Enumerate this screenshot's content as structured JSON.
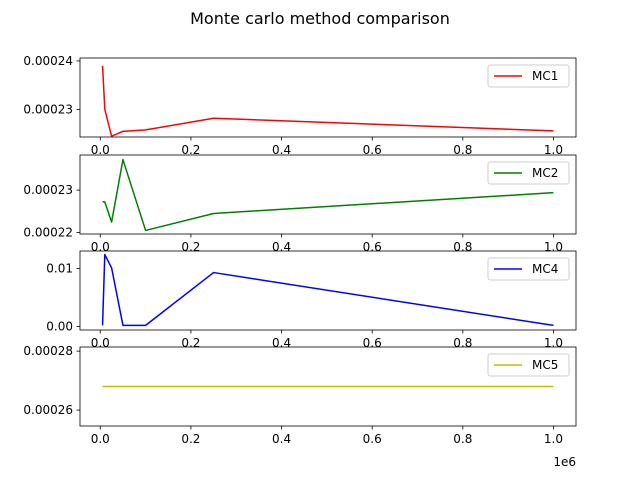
{
  "title": "Monte carlo method comparison",
  "chart_data": [
    {
      "type": "line",
      "series": [
        {
          "name": "MC1",
          "color": "#ff0000",
          "x": [
            5000,
            10000,
            25000,
            50000,
            100000,
            250000,
            1000000
          ],
          "y": [
            0.000239,
            0.00023,
            0.0002245,
            0.0002255,
            0.0002258,
            0.0002282,
            0.0002256
          ]
        }
      ],
      "ylim": [
        0.00022434,
        0.0002406
      ],
      "y_ticks": [
        0.00023,
        0.00024
      ],
      "y_tick_labels": [
        "0.00023",
        "0.00024"
      ],
      "legend": "upper right"
    },
    {
      "type": "line",
      "series": [
        {
          "name": "MC2",
          "color": "#008000",
          "x": [
            5000,
            10000,
            25000,
            50000,
            100000,
            250000,
            1000000
          ],
          "y": [
            0.0002273,
            0.0002272,
            0.0002225,
            0.0002372,
            0.0002205,
            0.0002245,
            0.0002294
          ]
        }
      ],
      "ylim": [
        0.00021966,
        0.00023828
      ],
      "y_ticks": [
        0.00022,
        0.00023
      ],
      "y_tick_labels": [
        "0.00022",
        "0.00023"
      ],
      "legend": "upper right"
    },
    {
      "type": "line",
      "series": [
        {
          "name": "MC4",
          "color": "#0000ff",
          "x": [
            5000,
            10000,
            25000,
            50000,
            100000,
            250000,
            1000000
          ],
          "y": [
            0.0002,
            0.0124,
            0.0101,
            0.0002,
            0.0002,
            0.0093,
            0.0002
          ]
        }
      ],
      "ylim": [
        -0.000593,
        0.013013
      ],
      "y_ticks": [
        0.0,
        0.01
      ],
      "y_tick_labels": [
        "0.00",
        "0.01"
      ],
      "legend": "upper right"
    },
    {
      "type": "line",
      "series": [
        {
          "name": "MC5",
          "color": "#bfbf00",
          "x": [
            5000,
            10000,
            25000,
            50000,
            100000,
            250000,
            1000000
          ],
          "y": [
            0.000268,
            0.000268,
            0.000268,
            0.000268,
            0.000268,
            0.000268,
            0.000268
          ]
        }
      ],
      "ylim": [
        0.0002546,
        0.0002814
      ],
      "y_ticks": [
        0.00026,
        0.00028
      ],
      "y_tick_labels": [
        "0.00026",
        "0.00028"
      ],
      "legend": "upper right"
    }
  ],
  "shared_x": {
    "xlim": [
      -44750,
      1049750
    ],
    "ticks": [
      0,
      200000,
      400000,
      600000,
      800000,
      1000000
    ],
    "tick_labels": [
      "0.0",
      "0.2",
      "0.4",
      "0.6",
      "0.8",
      "1.0"
    ],
    "offset_label": "1e6"
  }
}
